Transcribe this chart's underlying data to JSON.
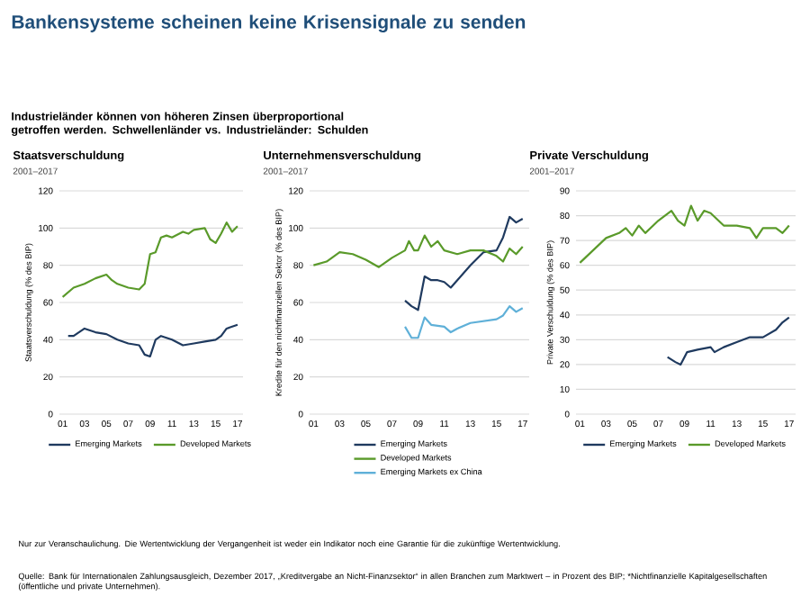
{
  "chart_data": [
    {
      "type": "other",
      "title": "Bankensysteme scheinen keine Krisensignale zu senden",
      "subtitle": "Industrieländer können von höheren Zinsen überproportional getroffen werden. Schwellenländer vs. Industrieländer: Schulden",
      "annotations": [
        "Nur zur Veranschaulichung. Die Wertentwicklung der Vergangenheit ist weder ein Indikator noch eine Garantie für die zukünftige Wertentwicklung.",
        "Quelle: Bank für Internationalen Zahlungsausgleich, Dezember 2017, „Kreditvergabe an Nicht-Finanzsektor“ in allen Branchen zum Marktwert – in Prozent des BIP; *Nichtfinanzielle Kapitalgesellschaften (öffentliche und private Unternehmen)."
      ]
    },
    {
      "type": "line",
      "title": "Staatsverschuldung",
      "subtitle": "2001–2017",
      "ylabel": "Staatsverschuldung (% des BIP)",
      "xlim": [
        2000.7,
        2017.5
      ],
      "ylim": [
        0,
        120
      ],
      "yticks": [
        0,
        20,
        40,
        60,
        80,
        100,
        120
      ],
      "xticks": [
        {
          "value": 2001,
          "label": "01"
        },
        {
          "value": 2003,
          "label": "03"
        },
        {
          "value": 2005,
          "label": "05"
        },
        {
          "value": 2007,
          "label": "07"
        },
        {
          "value": 2009,
          "label": "09"
        },
        {
          "value": 2011,
          "label": "11"
        },
        {
          "value": 2013,
          "label": "13"
        },
        {
          "value": 2015,
          "label": "15"
        },
        {
          "value": 2017,
          "label": "17"
        }
      ],
      "grid": "y",
      "legend": "bottom",
      "series": [
        {
          "name": "Emerging Markets",
          "color": "#1f3a5f",
          "x": [
            2001.5,
            2002,
            2003,
            2004,
            2005,
            2006,
            2007,
            2008,
            2008.5,
            2009,
            2009.5,
            2010,
            2010.5,
            2011,
            2012,
            2013,
            2014,
            2015,
            2015.5,
            2016,
            2017
          ],
          "values": [
            42,
            42,
            46,
            44,
            43,
            40,
            38,
            37,
            32,
            31,
            40,
            42,
            41,
            40,
            37,
            38,
            39,
            40,
            42,
            46,
            48
          ]
        },
        {
          "name": "Developed Markets",
          "color": "#5a9a2a",
          "x": [
            2001,
            2002,
            2003,
            2004,
            2005,
            2005.5,
            2006,
            2007,
            2008,
            2008.5,
            2009,
            2009.5,
            2010,
            2010.5,
            2011,
            2012,
            2012.5,
            2013,
            2014,
            2014.5,
            2015,
            2015.5,
            2016,
            2016.5,
            2017
          ],
          "values": [
            63,
            68,
            70,
            73,
            75,
            72,
            70,
            68,
            67,
            70,
            86,
            87,
            95,
            96,
            95,
            98,
            97,
            99,
            100,
            94,
            92,
            97,
            103,
            98,
            101
          ]
        }
      ]
    },
    {
      "type": "line",
      "title": "Unternehmensverschuldung",
      "subtitle": "2001–2017",
      "ylabel": "Kredite für den nichtfinanziellen Sektor (% des BIP)",
      "xlim": [
        2000.7,
        2017.5
      ],
      "ylim": [
        0,
        120
      ],
      "yticks": [
        0,
        20,
        40,
        60,
        80,
        100,
        120
      ],
      "xticks": [
        {
          "value": 2001,
          "label": "01"
        },
        {
          "value": 2003,
          "label": "03"
        },
        {
          "value": 2005,
          "label": "05"
        },
        {
          "value": 2007,
          "label": "07"
        },
        {
          "value": 2009,
          "label": "09"
        },
        {
          "value": 2011,
          "label": "11"
        },
        {
          "value": 2013,
          "label": "13"
        },
        {
          "value": 2015,
          "label": "15"
        },
        {
          "value": 2017,
          "label": "17"
        }
      ],
      "grid": "y",
      "legend": "bottom",
      "series": [
        {
          "name": "Emerging Markets",
          "color": "#1f3a5f",
          "x": [
            2008,
            2008.5,
            2009,
            2009.5,
            2010,
            2010.5,
            2011,
            2011.5,
            2012,
            2013,
            2014,
            2015,
            2015.5,
            2016,
            2016.5,
            2017
          ],
          "values": [
            61,
            58,
            56,
            74,
            72,
            72,
            71,
            68,
            72,
            80,
            87,
            88,
            95,
            106,
            103,
            105
          ]
        },
        {
          "name": "Developed Markets",
          "color": "#5a9a2a",
          "x": [
            2001,
            2002,
            2003,
            2004,
            2005,
            2006,
            2007,
            2008,
            2008.3,
            2008.7,
            2009,
            2009.5,
            2010,
            2010.5,
            2011,
            2012,
            2013,
            2014,
            2015,
            2015.5,
            2016,
            2016.5,
            2017
          ],
          "values": [
            80,
            82,
            87,
            86,
            83,
            79,
            84,
            88,
            93,
            88,
            88,
            96,
            90,
            93,
            88,
            86,
            88,
            88,
            85,
            82,
            89,
            86,
            90
          ]
        },
        {
          "name": "Emerging Markets ex China",
          "color": "#5fb0d8",
          "x": [
            2008,
            2008.5,
            2009,
            2009.5,
            2010,
            2011,
            2011.5,
            2012,
            2013,
            2014,
            2015,
            2015.5,
            2016,
            2016.5,
            2017
          ],
          "values": [
            47,
            41,
            41,
            52,
            48,
            47,
            44,
            46,
            49,
            50,
            51,
            53,
            58,
            55,
            57
          ]
        }
      ]
    },
    {
      "type": "line",
      "title": "Private Verschuldung",
      "subtitle": "2001–2017",
      "ylabel": "Private Verschuldung (% des BIP)",
      "xlim": [
        2000.7,
        2017.5
      ],
      "ylim": [
        0,
        90
      ],
      "yticks": [
        0,
        10,
        20,
        30,
        40,
        50,
        60,
        70,
        80,
        90
      ],
      "xticks": [
        {
          "value": 2001,
          "label": "01"
        },
        {
          "value": 2003,
          "label": "03"
        },
        {
          "value": 2005,
          "label": "05"
        },
        {
          "value": 2007,
          "label": "07"
        },
        {
          "value": 2009,
          "label": "09"
        },
        {
          "value": 2011,
          "label": "11"
        },
        {
          "value": 2013,
          "label": "13"
        },
        {
          "value": 2015,
          "label": "15"
        },
        {
          "value": 2017,
          "label": "17"
        }
      ],
      "grid": "y",
      "legend": "bottom",
      "series": [
        {
          "name": "Emerging Markets",
          "color": "#1f3a5f",
          "x": [
            2007.7,
            2008.3,
            2008.7,
            2009.2,
            2010,
            2011,
            2011.3,
            2012,
            2013,
            2014,
            2015,
            2016,
            2016.5,
            2017
          ],
          "values": [
            23,
            21,
            20,
            25,
            26,
            27,
            25,
            27,
            29,
            31,
            31,
            34,
            37,
            39
          ]
        },
        {
          "name": "Developed Markets",
          "color": "#5a9a2a",
          "x": [
            2001,
            2002,
            2003,
            2004,
            2004.5,
            2005,
            2005.5,
            2006,
            2007,
            2008,
            2008.5,
            2009,
            2009.5,
            2010,
            2010.5,
            2011,
            2012,
            2013,
            2014,
            2014.5,
            2015,
            2016,
            2016.5,
            2017
          ],
          "values": [
            61,
            66,
            71,
            73,
            75,
            72,
            76,
            73,
            78,
            82,
            78,
            76,
            84,
            78,
            82,
            81,
            76,
            76,
            75,
            71,
            75,
            75,
            73,
            76
          ]
        }
      ]
    }
  ]
}
